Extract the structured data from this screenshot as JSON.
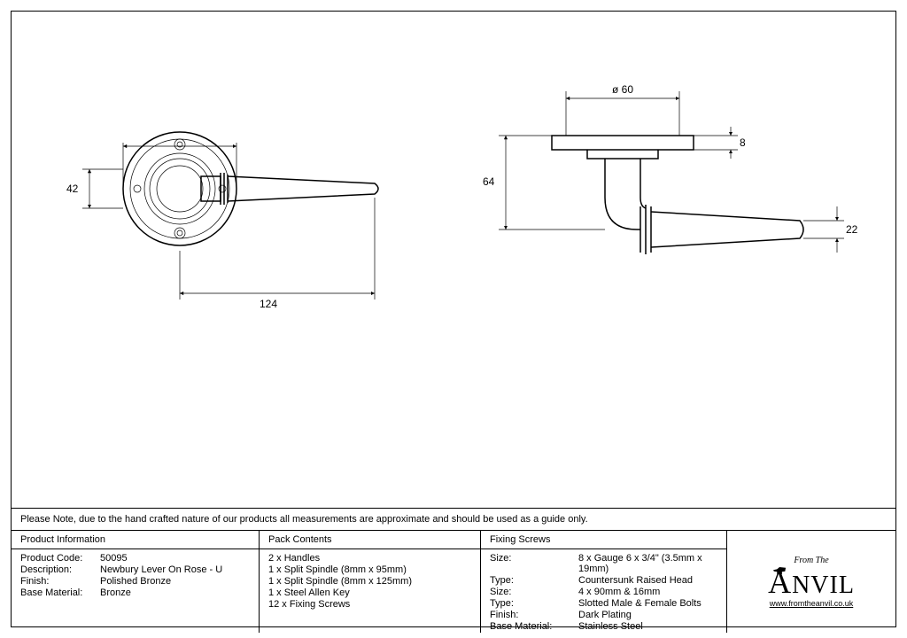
{
  "note": "Please Note, due to the hand crafted nature of our products all measurements are approximate and should be used as a guide only.",
  "product_info": {
    "header": "Product Information",
    "rows": [
      {
        "label": "Product Code:",
        "value": "50095"
      },
      {
        "label": "Description:",
        "value": "Newbury Lever On Rose - U"
      },
      {
        "label": "Finish:",
        "value": "Polished Bronze"
      },
      {
        "label": "Base Material:",
        "value": "Bronze"
      }
    ]
  },
  "pack_contents": {
    "header": "Pack Contents",
    "items": [
      "2 x Handles",
      "1 x Split Spindle (8mm x 95mm)",
      "1 x Split Spindle (8mm x 125mm)",
      "1 x Steel Allen Key",
      "12 x Fixing Screws"
    ]
  },
  "fixing_screws": {
    "header": "Fixing Screws",
    "rows": [
      {
        "label": "Size:",
        "value": "8 x Gauge 6 x 3/4\" (3.5mm x 19mm)"
      },
      {
        "label": "Type:",
        "value": "Countersunk Raised Head"
      },
      {
        "label": "Size:",
        "value": "4 x 90mm & 16mm"
      },
      {
        "label": "Type:",
        "value": "Slotted Male & Female Bolts"
      },
      {
        "label": "Finish:",
        "value": "Dark Plating"
      },
      {
        "label": "Base Material:",
        "value": "Stainless Steel"
      }
    ]
  },
  "logo": {
    "from": "From The",
    "name": "NVIL",
    "url": "www.fromtheanvil.co.uk"
  },
  "dimensions": {
    "front": {
      "height": "42",
      "width": "124"
    },
    "side": {
      "diameter": "ø 60",
      "plate_thickness": "8",
      "drop": "64",
      "lever_end": "22"
    }
  },
  "drawing_style": {
    "stroke_thin": 0.7,
    "stroke_med": 1.5,
    "color": "#000000",
    "background": "#ffffff",
    "font_size_dim": 12
  }
}
